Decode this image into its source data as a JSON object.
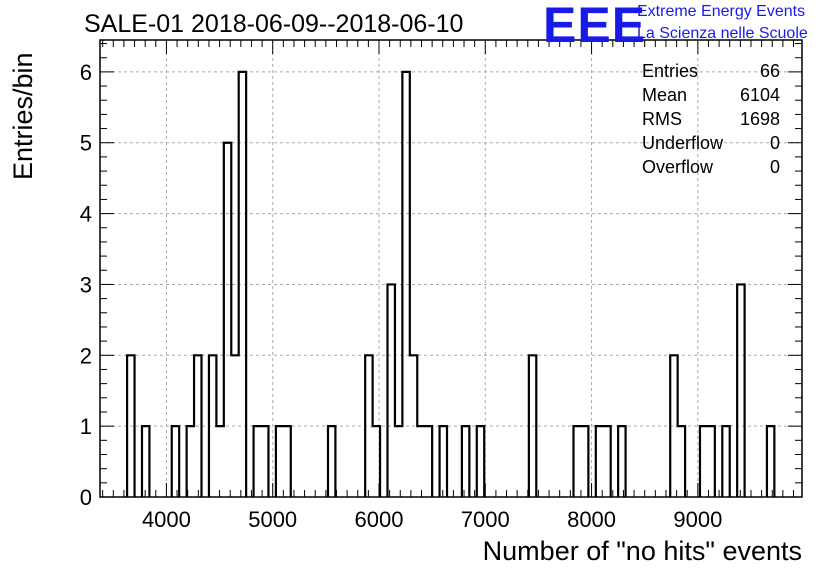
{
  "chart_data": {
    "type": "bar",
    "title": "SALE-01 2018-06-09--2018-06-10",
    "xlabel": "Number of \"no hits\" events",
    "ylabel": "Entries/bin",
    "xlim": [
      3375,
      9980
    ],
    "ylim": [
      0,
      6.45
    ],
    "bin_width": 70,
    "x_ticks": [
      4000,
      5000,
      6000,
      7000,
      8000,
      9000
    ],
    "y_ticks": [
      0,
      1,
      2,
      3,
      4,
      5,
      6
    ],
    "grid": true,
    "bins": [
      {
        "x": 3630,
        "y": 2
      },
      {
        "x": 3770,
        "y": 1
      },
      {
        "x": 4050,
        "y": 1
      },
      {
        "x": 4190,
        "y": 1
      },
      {
        "x": 4260,
        "y": 2
      },
      {
        "x": 4400,
        "y": 2
      },
      {
        "x": 4470,
        "y": 1
      },
      {
        "x": 4540,
        "y": 5
      },
      {
        "x": 4610,
        "y": 2
      },
      {
        "x": 4680,
        "y": 6
      },
      {
        "x": 4820,
        "y": 1
      },
      {
        "x": 4890,
        "y": 1
      },
      {
        "x": 5030,
        "y": 1
      },
      {
        "x": 5100,
        "y": 1
      },
      {
        "x": 5520,
        "y": 1
      },
      {
        "x": 5870,
        "y": 2
      },
      {
        "x": 5940,
        "y": 1
      },
      {
        "x": 6080,
        "y": 3
      },
      {
        "x": 6150,
        "y": 1
      },
      {
        "x": 6220,
        "y": 6
      },
      {
        "x": 6290,
        "y": 2
      },
      {
        "x": 6360,
        "y": 1
      },
      {
        "x": 6430,
        "y": 1
      },
      {
        "x": 6570,
        "y": 1
      },
      {
        "x": 6780,
        "y": 1
      },
      {
        "x": 6920,
        "y": 1
      },
      {
        "x": 7410,
        "y": 2
      },
      {
        "x": 7830,
        "y": 1
      },
      {
        "x": 7900,
        "y": 1
      },
      {
        "x": 8040,
        "y": 1
      },
      {
        "x": 8110,
        "y": 1
      },
      {
        "x": 8250,
        "y": 1
      },
      {
        "x": 8740,
        "y": 2
      },
      {
        "x": 8810,
        "y": 1
      },
      {
        "x": 9020,
        "y": 1
      },
      {
        "x": 9090,
        "y": 1
      },
      {
        "x": 9230,
        "y": 1
      },
      {
        "x": 9370,
        "y": 3
      },
      {
        "x": 9650,
        "y": 1
      }
    ],
    "stats": [
      {
        "label": "Entries",
        "value": "66"
      },
      {
        "label": "Mean",
        "value": "6104"
      },
      {
        "label": "RMS",
        "value": "1698"
      },
      {
        "label": "Underflow",
        "value": "0"
      },
      {
        "label": "Overflow",
        "value": "0"
      }
    ]
  },
  "logo": {
    "mark": "EEE",
    "line1": "Extreme Energy Events",
    "line2": "La Scienza nelle Scuole",
    "color": "#1a1ae6"
  }
}
